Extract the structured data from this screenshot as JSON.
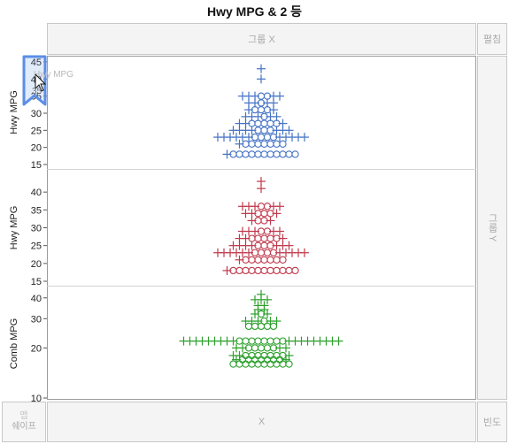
{
  "title": "Hwy MPG & 2 등",
  "zones": {
    "group_x": "그룹 X",
    "wrap": "펼침",
    "group_y": "그룹 Y",
    "x": "X",
    "freq": "빈도",
    "map_shape_top": "맵",
    "map_shape": "쉐이프"
  },
  "drag_tooltip": {
    "label": "Hwy MPG",
    "value": "35"
  },
  "colors": {
    "panel1": "#4472c4",
    "panel2": "#c0384b",
    "panel3": "#2ca02c",
    "frame": "#9a9a9a",
    "drag_highlight": "#5b8ee6"
  },
  "chart_data": [
    {
      "type": "scatter",
      "ylabel": "Hwy MPG",
      "yticks": [
        15,
        20,
        25,
        30,
        35,
        40,
        45
      ],
      "ylim": [
        15,
        45
      ],
      "markers": [
        "plus",
        "circle"
      ],
      "rows": [
        {
          "y": 43,
          "plus": 1,
          "circle": 0
        },
        {
          "y": 40,
          "plus": 1,
          "circle": 0
        },
        {
          "y": 35,
          "plus": 5,
          "circle": 2
        },
        {
          "y": 33,
          "plus": 4,
          "circle": 1
        },
        {
          "y": 31,
          "plus": 2,
          "circle": 3
        },
        {
          "y": 29,
          "plus": 5,
          "circle": 1
        },
        {
          "y": 27,
          "plus": 3,
          "circle": 5
        },
        {
          "y": 25,
          "plus": 7,
          "circle": 3
        },
        {
          "y": 23,
          "plus": 11,
          "circle": 4
        },
        {
          "y": 21,
          "plus": 1,
          "circle": 7
        },
        {
          "y": 18,
          "plus": 1,
          "circle": 11
        }
      ]
    },
    {
      "type": "scatter",
      "ylabel": "Hwy MPG",
      "yticks": [
        15,
        20,
        25,
        30,
        35,
        40
      ],
      "ylim": [
        15,
        45
      ],
      "markers": [
        "plus",
        "circle"
      ],
      "rows": [
        {
          "y": 43,
          "plus": 1,
          "circle": 0
        },
        {
          "y": 41,
          "plus": 1,
          "circle": 0
        },
        {
          "y": 36,
          "plus": 5,
          "circle": 2
        },
        {
          "y": 34,
          "plus": 3,
          "circle": 3
        },
        {
          "y": 32,
          "plus": 2,
          "circle": 2
        },
        {
          "y": 29,
          "plus": 5,
          "circle": 2
        },
        {
          "y": 27,
          "plus": 3,
          "circle": 5
        },
        {
          "y": 25,
          "plus": 7,
          "circle": 3
        },
        {
          "y": 23,
          "plus": 11,
          "circle": 4
        },
        {
          "y": 21,
          "plus": 1,
          "circle": 7
        },
        {
          "y": 18,
          "plus": 1,
          "circle": 11
        }
      ]
    },
    {
      "type": "scatter",
      "ylabel": "Comb MPG",
      "yscale": "log",
      "yticks": [
        10,
        20,
        30,
        40
      ],
      "ylim": [
        10,
        44
      ],
      "markers": [
        "plus",
        "circle"
      ],
      "rows": [
        {
          "y": 42,
          "plus": 1,
          "circle": 0
        },
        {
          "y": 39,
          "plus": 3,
          "circle": 0
        },
        {
          "y": 36,
          "plus": 2,
          "circle": 0
        },
        {
          "y": 34,
          "plus": 2,
          "circle": 0
        },
        {
          "y": 32,
          "plus": 2,
          "circle": 1
        },
        {
          "y": 29,
          "plus": 5,
          "circle": 1
        },
        {
          "y": 27,
          "plus": 0,
          "circle": 5
        },
        {
          "y": 22,
          "plus": 18,
          "circle": 8
        },
        {
          "y": 20,
          "plus": 4,
          "circle": 5
        },
        {
          "y": 18,
          "plus": 3,
          "circle": 7
        },
        {
          "y": 17,
          "plus": 2,
          "circle": 7
        },
        {
          "y": 16,
          "plus": 0,
          "circle": 10
        }
      ]
    }
  ]
}
